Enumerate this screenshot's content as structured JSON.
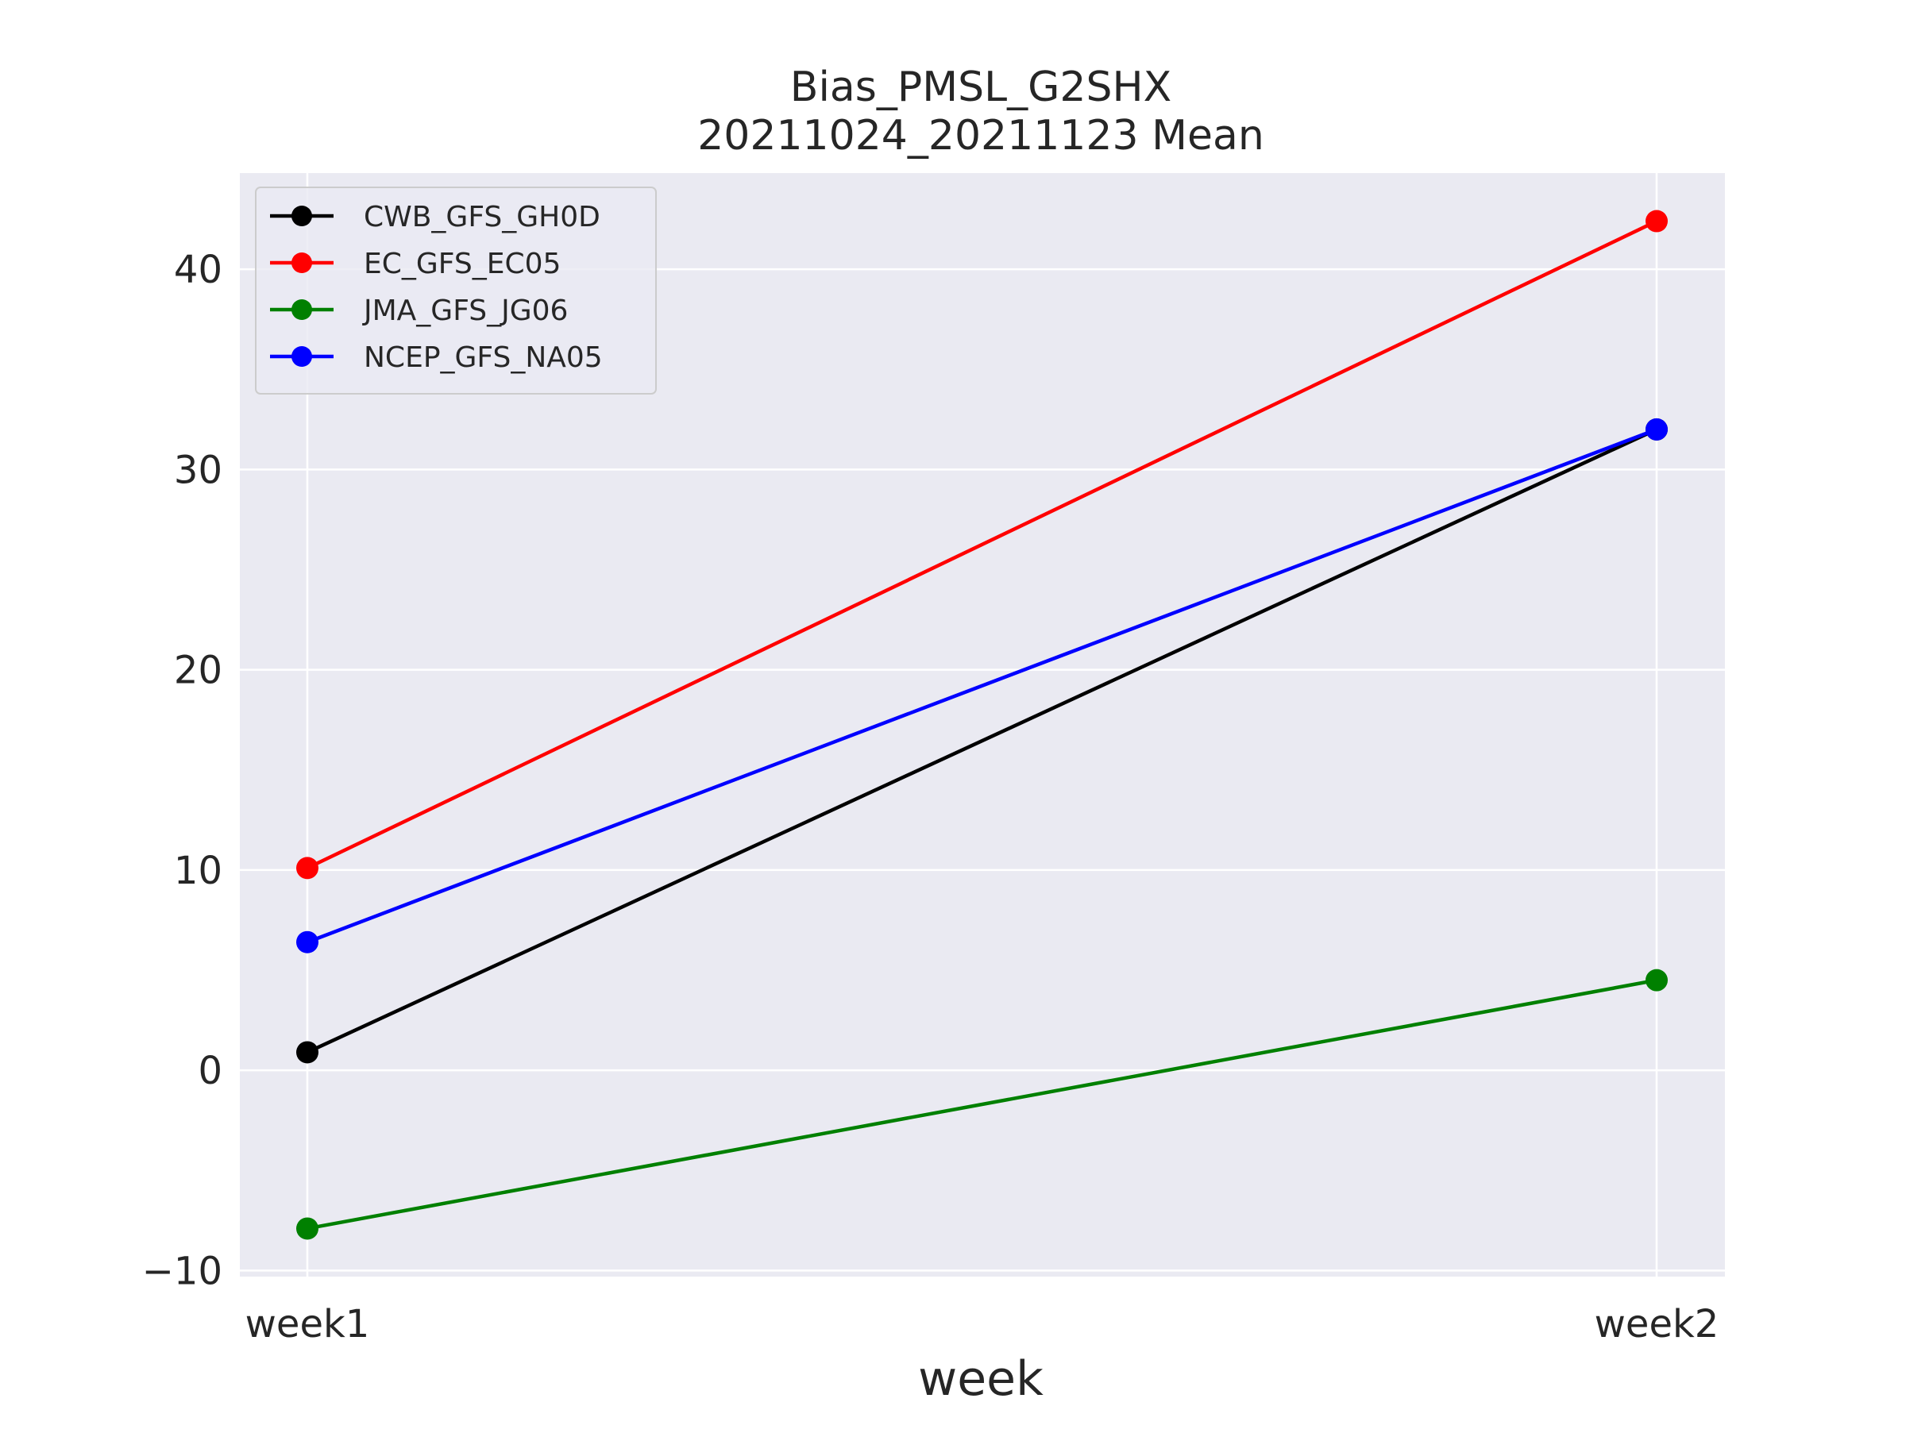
{
  "chart_data": {
    "type": "line",
    "title": "Bias_PMSL_G2SHX",
    "subtitle": "20211024_20211123 Mean",
    "xlabel": "week",
    "ylabel": "",
    "categories": [
      "week1",
      "week2"
    ],
    "ylim": [
      -10.3,
      44.8
    ],
    "yticks": [
      -10,
      0,
      10,
      20,
      30,
      40
    ],
    "ytick_labels": [
      "−10",
      "0",
      "10",
      "20",
      "30",
      "40"
    ],
    "grid": true,
    "legend_position": "upper-left",
    "series": [
      {
        "name": "CWB_GFS_GH0D",
        "color": "#000000",
        "values": [
          0.9,
          32.0
        ]
      },
      {
        "name": "EC_GFS_EC05",
        "color": "#ff0000",
        "values": [
          10.1,
          42.4
        ]
      },
      {
        "name": "JMA_GFS_JG06",
        "color": "#008000",
        "values": [
          -7.9,
          4.5
        ]
      },
      {
        "name": "NCEP_GFS_NA05",
        "color": "#0000ff",
        "values": [
          6.4,
          32.0
        ]
      }
    ]
  },
  "colors": {
    "plot_background": "#eaeaf2",
    "grid": "#ffffff",
    "legend_frame": "#cccccc"
  }
}
